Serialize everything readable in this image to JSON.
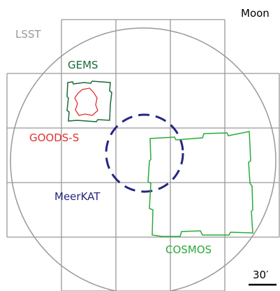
{
  "labels": {
    "moon": "Moon",
    "lsst": "LSST",
    "gems": "GEMS",
    "goods": "GOODS-S",
    "meerkat": "MeerKAT",
    "cosmos": "COSMOS",
    "scale": "30′"
  }
}
